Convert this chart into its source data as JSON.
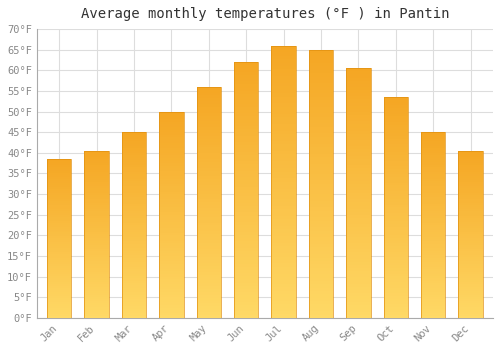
{
  "title": "Average monthly temperatures (°F ) in Pantin",
  "months": [
    "Jan",
    "Feb",
    "Mar",
    "Apr",
    "May",
    "Jun",
    "Jul",
    "Aug",
    "Sep",
    "Oct",
    "Nov",
    "Dec"
  ],
  "values": [
    38.5,
    40.5,
    45.0,
    50.0,
    56.0,
    62.0,
    66.0,
    65.0,
    60.5,
    53.5,
    45.0,
    40.5
  ],
  "bar_color_top": "#F5A623",
  "bar_color_bottom": "#FFD966",
  "bar_edge_color": "#E09010",
  "ylim": [
    0,
    70
  ],
  "yticks": [
    0,
    5,
    10,
    15,
    20,
    25,
    30,
    35,
    40,
    45,
    50,
    55,
    60,
    65,
    70
  ],
  "background_color": "#ffffff",
  "grid_color": "#dddddd",
  "title_fontsize": 10,
  "tick_fontsize": 7.5,
  "font_family": "monospace",
  "bar_width": 0.65,
  "figsize": [
    5.0,
    3.5
  ],
  "dpi": 100
}
